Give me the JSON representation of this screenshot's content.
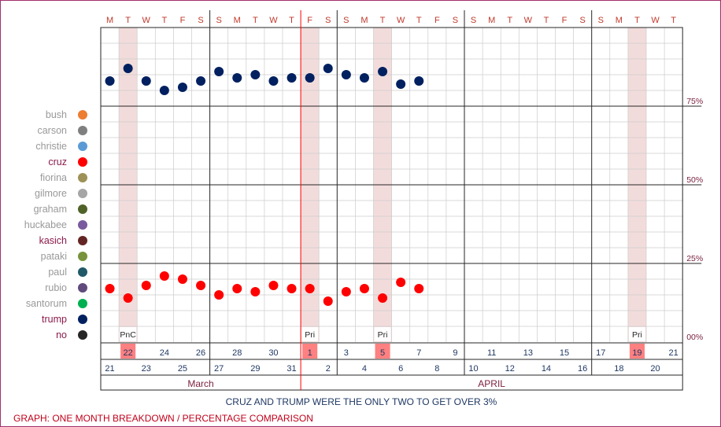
{
  "chart_data": {
    "type": "scatter",
    "day_header": [
      "M",
      "T",
      "W",
      "T",
      "F",
      "S",
      "S",
      "M",
      "T",
      "W",
      "T",
      "F",
      "S",
      "S",
      "M",
      "T",
      "W",
      "T",
      "F",
      "S",
      "S",
      "M",
      "T",
      "W",
      "T",
      "F",
      "S",
      "S",
      "M",
      "T",
      "W",
      "T"
    ],
    "dates_top": [
      "22",
      "24",
      "26",
      "28",
      "30",
      "1",
      "3",
      "5",
      "7",
      "9",
      "11",
      "13",
      "15",
      "17",
      "19",
      "21"
    ],
    "dates_bottom": [
      "21",
      "23",
      "25",
      "27",
      "29",
      "31",
      "2",
      "4",
      "6",
      "8",
      "10",
      "12",
      "14",
      "16",
      "18",
      "20"
    ],
    "months": [
      "March",
      "APRIL"
    ],
    "y_tick_labels": [
      "75%",
      "50%",
      "25%",
      "00%"
    ],
    "y_ticks": [
      75,
      50,
      25,
      0
    ],
    "ylim": [
      0,
      100
    ],
    "event_markers": [
      {
        "date": "2016-03-22",
        "label": "PnC"
      },
      {
        "date": "2016-04-01",
        "label": "Pri"
      },
      {
        "date": "2016-04-05",
        "label": "Pri"
      },
      {
        "date": "2016-04-19",
        "label": "Pri"
      }
    ],
    "highlight_dates": [
      "2016-03-22",
      "2016-04-01",
      "2016-04-05",
      "2016-04-19"
    ],
    "legend": [
      {
        "name": "bush",
        "color": "#ed7d31",
        "emphasis": false
      },
      {
        "name": "carson",
        "color": "#7f7f7f",
        "emphasis": false
      },
      {
        "name": "christie",
        "color": "#5b9bd5",
        "emphasis": false
      },
      {
        "name": "cruz",
        "color": "#ff0000",
        "emphasis": true
      },
      {
        "name": "fiorina",
        "color": "#9e9157",
        "emphasis": false
      },
      {
        "name": "gilmore",
        "color": "#a6a6a6",
        "emphasis": false
      },
      {
        "name": "graham",
        "color": "#4f6228",
        "emphasis": false
      },
      {
        "name": "huckabee",
        "color": "#7a5a9e",
        "emphasis": false
      },
      {
        "name": "kasich",
        "color": "#632523",
        "emphasis": true
      },
      {
        "name": "pataki",
        "color": "#77933c",
        "emphasis": false
      },
      {
        "name": "paul",
        "color": "#215968",
        "emphasis": false
      },
      {
        "name": "rubio",
        "color": "#604a7b",
        "emphasis": false
      },
      {
        "name": "santorum",
        "color": "#00b050",
        "emphasis": false
      },
      {
        "name": "trump",
        "color": "#002060",
        "emphasis": true
      },
      {
        "name": "no",
        "color": "#262626",
        "emphasis": true
      }
    ],
    "series": [
      {
        "name": "trump",
        "color": "#002060",
        "points": [
          [
            "2016-03-21",
            83
          ],
          [
            "2016-03-22",
            87
          ],
          [
            "2016-03-23",
            83
          ],
          [
            "2016-03-24",
            80
          ],
          [
            "2016-03-25",
            81
          ],
          [
            "2016-03-26",
            83
          ],
          [
            "2016-03-27",
            86
          ],
          [
            "2016-03-28",
            84
          ],
          [
            "2016-03-29",
            85
          ],
          [
            "2016-03-30",
            83
          ],
          [
            "2016-03-31",
            84
          ],
          [
            "2016-04-01",
            84
          ],
          [
            "2016-04-02",
            87
          ],
          [
            "2016-04-03",
            85
          ],
          [
            "2016-04-04",
            84
          ],
          [
            "2016-04-05",
            86
          ],
          [
            "2016-04-06",
            82
          ],
          [
            "2016-04-07",
            83
          ]
        ]
      },
      {
        "name": "cruz",
        "color": "#ff0000",
        "points": [
          [
            "2016-03-21",
            17
          ],
          [
            "2016-03-22",
            14
          ],
          [
            "2016-03-23",
            18
          ],
          [
            "2016-03-24",
            21
          ],
          [
            "2016-03-25",
            20
          ],
          [
            "2016-03-26",
            18
          ],
          [
            "2016-03-27",
            15
          ],
          [
            "2016-03-28",
            17
          ],
          [
            "2016-03-29",
            16
          ],
          [
            "2016-03-30",
            18
          ],
          [
            "2016-03-31",
            17
          ],
          [
            "2016-04-01",
            17
          ],
          [
            "2016-04-02",
            13
          ],
          [
            "2016-04-03",
            16
          ],
          [
            "2016-04-04",
            17
          ],
          [
            "2016-04-05",
            14
          ],
          [
            "2016-04-06",
            19
          ],
          [
            "2016-04-07",
            17
          ]
        ]
      }
    ],
    "grid": true
  },
  "caption": "CRUZ AND TRUMP WERE THE ONLY TWO TO GET OVER 3%",
  "footer": "GRAPH: ONE MONTH BREAKDOWN / PERCENTAGE COMPARISON",
  "colors": {
    "border": "#a0306b",
    "day_header": "#c0392b",
    "grid_major": "#262626",
    "grid_minor": "#cccccc",
    "highlight_band": "#f2dcdb",
    "highlight_cell": "#ff8080",
    "label": "#7a1f3d",
    "date_text": "#1f3864",
    "month_text": "#7a1f3d",
    "primary_line": "#ff0000",
    "legend_dim": "#999999",
    "legend_emph": "#8b1a4a"
  }
}
